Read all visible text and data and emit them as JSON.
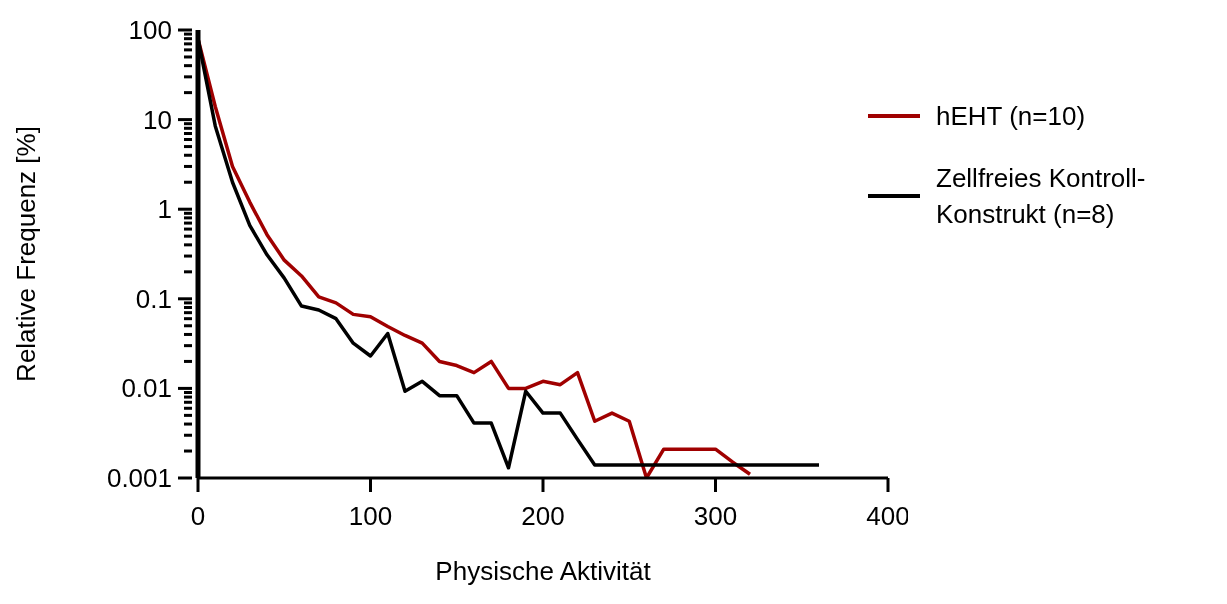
{
  "chart_data": {
    "type": "line",
    "xlabel": "Physische Aktivität",
    "ylabel": "Relative Frequenz [%]",
    "xlim": [
      0,
      400
    ],
    "xticks": [
      0,
      100,
      200,
      300,
      400
    ],
    "ylim": [
      0.001,
      100
    ],
    "log": true,
    "yticks": [
      0.001,
      {
        "value": 0.002,
        "label": null
      },
      {
        "value": 0.003,
        "label": null
      },
      {
        "value": 0.004,
        "label": null
      },
      {
        "value": 0.005,
        "label": null
      },
      {
        "value": 0.006,
        "label": null
      },
      {
        "value": 0.007,
        "label": null
      },
      {
        "value": 0.008,
        "label": null
      },
      {
        "value": 0.009,
        "label": null
      },
      0.01,
      {
        "value": 0.02,
        "label": null
      },
      {
        "value": 0.03,
        "label": null
      },
      {
        "value": 0.04,
        "label": null
      },
      {
        "value": 0.05,
        "label": null
      },
      {
        "value": 0.06,
        "label": null
      },
      {
        "value": 0.07,
        "label": null
      },
      {
        "value": 0.08,
        "label": null
      },
      {
        "value": 0.09,
        "label": null
      },
      0.1,
      {
        "value": 0.2,
        "label": null
      },
      {
        "value": 0.3,
        "label": null
      },
      {
        "value": 0.4,
        "label": null
      },
      {
        "value": 0.5,
        "label": null
      },
      {
        "value": 0.6,
        "label": null
      },
      {
        "value": 0.7,
        "label": null
      },
      {
        "value": 0.8,
        "label": null
      },
      {
        "value": 0.9,
        "label": null
      },
      1,
      {
        "value": 2,
        "label": null
      },
      {
        "value": 3,
        "label": null
      },
      {
        "value": 4,
        "label": null
      },
      {
        "value": 5,
        "label": null
      },
      {
        "value": 6,
        "label": null
      },
      {
        "value": 7,
        "label": null
      },
      {
        "value": 8,
        "label": null
      },
      {
        "value": 9,
        "label": null
      },
      10,
      {
        "value": 20,
        "label": null
      },
      {
        "value": 30,
        "label": null
      },
      {
        "value": 40,
        "label": null
      },
      {
        "value": 50,
        "label": null
      },
      {
        "value": 60,
        "label": null
      },
      {
        "value": 70,
        "label": null
      },
      {
        "value": 80,
        "label": null
      },
      {
        "value": 90,
        "label": null
      },
      100
    ],
    "grid": false,
    "legend": "right",
    "marker": "none",
    "line_style": "solid",
    "series": [
      {
        "name": "hEHT (n=10)",
        "color": "#a00000",
        "x": [
          0,
          10,
          20,
          30,
          40,
          50,
          60,
          70,
          80,
          90,
          100,
          110,
          120,
          130,
          140,
          150,
          160,
          170,
          180,
          190,
          200,
          210,
          220,
          230,
          240,
          250,
          260,
          270,
          280,
          290,
          300,
          310,
          320
        ],
        "values": [
          80,
          14,
          3,
          1.2,
          0.52,
          0.27,
          0.18,
          0.105,
          0.09,
          0.067,
          0.063,
          0.049,
          0.039,
          0.032,
          0.02,
          0.018,
          0.015,
          0.02,
          0.01,
          0.01,
          0.012,
          0.011,
          0.015,
          0.0043,
          0.0053,
          0.0043,
          0.001,
          0.0021,
          0.0021,
          0.0021,
          0.0021,
          0.0015,
          0.0011
        ]
      },
      {
        "name": "Zellfreies Kontroll-Konstrukt (n=8)",
        "color": "#000000",
        "x": [
          0,
          10,
          20,
          30,
          40,
          50,
          60,
          70,
          80,
          90,
          100,
          110,
          120,
          130,
          140,
          150,
          160,
          170,
          180,
          190,
          200,
          210,
          220,
          230,
          240,
          250,
          260,
          270,
          280,
          290,
          300,
          310,
          320,
          330,
          340,
          350,
          360
        ],
        "values": [
          80,
          8.5,
          2,
          0.66,
          0.31,
          0.17,
          0.083,
          0.075,
          0.06,
          0.032,
          0.023,
          0.041,
          0.0093,
          0.012,
          0.0083,
          0.0083,
          0.0041,
          0.0041,
          0.0013,
          0.0093,
          0.0053,
          0.0053,
          0.0027,
          0.0014,
          0.0014,
          0.0014,
          0.0014,
          0.0014,
          0.0014,
          0.0014,
          0.0014,
          0.0014,
          0.0014,
          0.0014,
          0.0014,
          0.0014,
          0.0014
        ]
      }
    ]
  }
}
